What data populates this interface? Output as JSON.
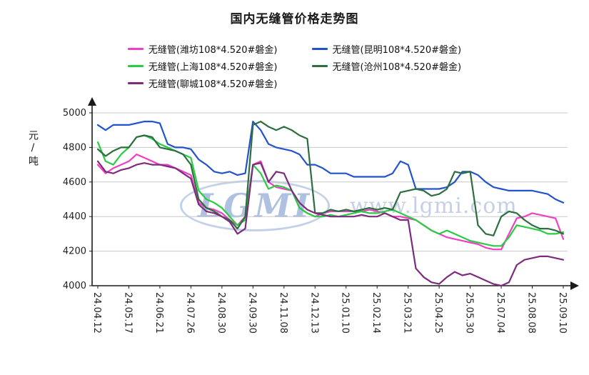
{
  "watermark": {
    "logo": "LGMI",
    "url": "www.lgmi.com"
  },
  "chart_data": {
    "type": "line",
    "title": "国内无缝管价格走势图",
    "ylabel": "元/吨",
    "xlabel": "",
    "ylim": [
      4000,
      5000
    ],
    "ytick_step": 200,
    "grid": true,
    "legend_position": "top",
    "colors": {
      "grid": "#c9c9c9",
      "axis": "#1a1a1a",
      "tick_text": "#222222"
    },
    "categories": [
      "24.04.12",
      "24.05.17",
      "24.06.21",
      "24.07.26",
      "24.08.30",
      "24.09.30",
      "24.11.08",
      "24.12.13",
      "25.01.10",
      "25.02.14",
      "25.03.21",
      "25.04.25",
      "25.05.30",
      "25.07.04",
      "25.08.08",
      "25.09.10"
    ],
    "series": [
      {
        "id": "weifang",
        "label": "无缝管(潍坊108*4.520#磐金)",
        "color": "#ef3fc3",
        "values": [
          4700,
          4650,
          4680,
          4700,
          4720,
          4760,
          4740,
          4720,
          4700,
          4700,
          4680,
          4660,
          4640,
          4480,
          4450,
          4440,
          4420,
          4380,
          4350,
          4400,
          4700,
          4720,
          4600,
          4570,
          4560,
          4550,
          4450,
          4420,
          4400,
          4420,
          4430,
          4430,
          4430,
          4430,
          4430,
          4440,
          4430,
          4420,
          4400,
          4400,
          4390,
          4380,
          4350,
          4320,
          4300,
          4280,
          4270,
          4260,
          4250,
          4240,
          4220,
          4210,
          4210,
          4300,
          4390,
          4400,
          4420,
          4410,
          4400,
          4390,
          4270
        ]
      },
      {
        "id": "kunming",
        "label": "无缝管(昆明108*4.520#磐金)",
        "color": "#2153cc",
        "values": [
          4930,
          4900,
          4930,
          4930,
          4930,
          4940,
          4950,
          4950,
          4940,
          4820,
          4800,
          4800,
          4790,
          4730,
          4700,
          4660,
          4650,
          4660,
          4640,
          4650,
          4950,
          4900,
          4820,
          4800,
          4790,
          4780,
          4760,
          4700,
          4700,
          4680,
          4650,
          4650,
          4650,
          4630,
          4630,
          4630,
          4630,
          4630,
          4650,
          4720,
          4700,
          4560,
          4560,
          4560,
          4560,
          4570,
          4600,
          4660,
          4660,
          4640,
          4600,
          4570,
          4560,
          4550,
          4550,
          4550,
          4550,
          4540,
          4530,
          4500,
          4480
        ]
      },
      {
        "id": "shanghai",
        "label": "无缝管(上海108*4.520#磐金)",
        "color": "#28cc43",
        "values": [
          4830,
          4720,
          4700,
          4760,
          4800,
          4860,
          4870,
          4850,
          4820,
          4800,
          4780,
          4760,
          4740,
          4550,
          4500,
          4480,
          4450,
          4400,
          4350,
          4380,
          4700,
          4650,
          4560,
          4580,
          4570,
          4550,
          4450,
          4420,
          4400,
          4400,
          4410,
          4400,
          4410,
          4420,
          4430,
          4420,
          4420,
          4430,
          4440,
          4420,
          4400,
          4380,
          4350,
          4320,
          4300,
          4320,
          4300,
          4280,
          4260,
          4250,
          4240,
          4230,
          4230,
          4280,
          4350,
          4340,
          4330,
          4320,
          4300,
          4300,
          4310
        ]
      },
      {
        "id": "cangzhou",
        "label": "无缝管(沧州108*4.520#磐金)",
        "color": "#2c6e3e",
        "values": [
          4790,
          4750,
          4780,
          4800,
          4800,
          4860,
          4870,
          4860,
          4800,
          4790,
          4780,
          4760,
          4700,
          4500,
          4450,
          4430,
          4400,
          4380,
          4330,
          4400,
          4930,
          4950,
          4920,
          4900,
          4920,
          4900,
          4870,
          4850,
          4420,
          4420,
          4440,
          4430,
          4440,
          4430,
          4440,
          4450,
          4440,
          4450,
          4440,
          4540,
          4550,
          4560,
          4550,
          4520,
          4530,
          4560,
          4660,
          4650,
          4660,
          4350,
          4300,
          4290,
          4400,
          4430,
          4420,
          4380,
          4350,
          4330,
          4330,
          4320,
          4300
        ]
      },
      {
        "id": "liaocheng",
        "label": "无缝管(聊城108*4.520#磐金)",
        "color": "#7d2c7d",
        "values": [
          4720,
          4660,
          4650,
          4670,
          4680,
          4700,
          4710,
          4700,
          4700,
          4690,
          4680,
          4650,
          4620,
          4470,
          4430,
          4420,
          4400,
          4370,
          4300,
          4330,
          4700,
          4710,
          4600,
          4660,
          4650,
          4550,
          4480,
          4440,
          4420,
          4410,
          4400,
          4400,
          4400,
          4400,
          4410,
          4400,
          4400,
          4420,
          4400,
          4380,
          4380,
          4100,
          4050,
          4020,
          4010,
          4050,
          4080,
          4060,
          4070,
          4050,
          4030,
          4010,
          4000,
          4020,
          4120,
          4150,
          4160,
          4170,
          4170,
          4160,
          4150
        ]
      }
    ]
  }
}
